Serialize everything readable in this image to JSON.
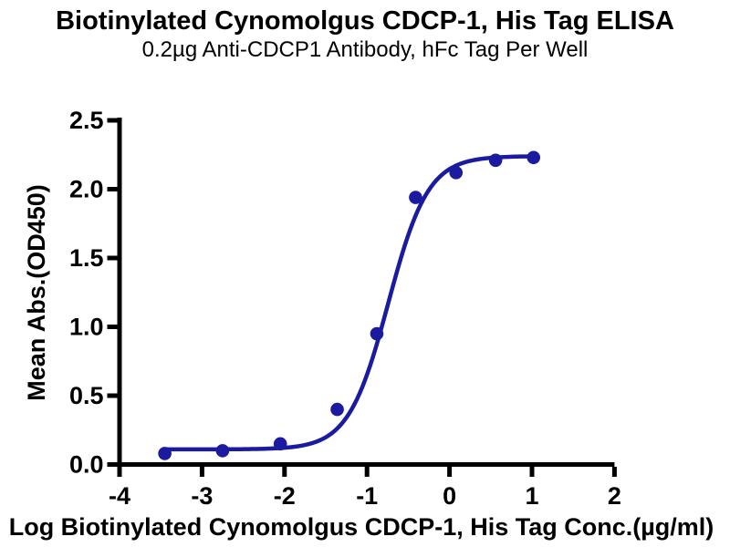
{
  "chart_data": {
    "type": "scatter",
    "title": "Biotinylated Cynomolgus CDCP-1, His Tag ELISA",
    "subtitle": "0.2µg Anti-CDCP1 Antibody, hFc Tag Per Well",
    "xlabel": "Log Biotinylated Cynomolgus CDCP-1, His Tag Conc.(µg/ml)",
    "ylabel": "Mean Abs.(OD450)",
    "xlim": [
      -4,
      2
    ],
    "ylim": [
      0,
      2.5
    ],
    "xticks": [
      "-4",
      "-3",
      "-2",
      "-1",
      "0",
      "1",
      "2"
    ],
    "yticks": [
      "0.0",
      "0.5",
      "1.0",
      "1.5",
      "2.0",
      "2.5"
    ],
    "grid": false,
    "legend": "none",
    "colors": {
      "series": "#1b1ba0",
      "axis": "#000000",
      "background": "#ffffff"
    },
    "series": [
      {
        "name": "Biotinylated Cynomolgus CDCP-1, His Tag",
        "marker": "circle",
        "points": [
          {
            "x": -3.44,
            "y": 0.08
          },
          {
            "x": -2.74,
            "y": 0.1
          },
          {
            "x": -2.04,
            "y": 0.15
          },
          {
            "x": -1.35,
            "y": 0.4
          },
          {
            "x": -0.87,
            "y": 0.95
          },
          {
            "x": -0.4,
            "y": 1.94
          },
          {
            "x": 0.09,
            "y": 2.12
          },
          {
            "x": 0.57,
            "y": 2.21
          },
          {
            "x": 1.03,
            "y": 2.23
          }
        ]
      }
    ],
    "curve_fit": {
      "model": "4PL",
      "bottom": 0.11,
      "top": 2.24,
      "log_ec50": -0.73,
      "hill_slope": 1.8,
      "x_range": [
        -3.44,
        1.03
      ]
    }
  }
}
